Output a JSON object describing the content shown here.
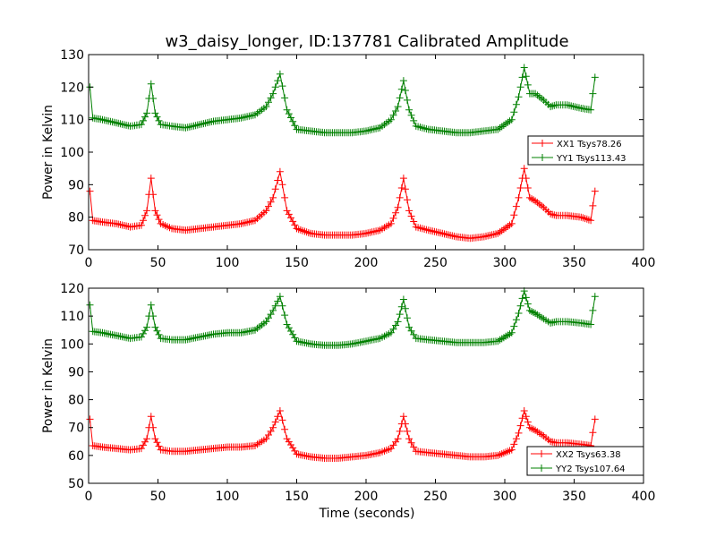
{
  "title": "w3_daisy_longer, ID:137781 Calibrated Amplitude",
  "colors": {
    "xx": "#ff0000",
    "yy": "#008000",
    "axes": "#000000",
    "background": "#ffffff"
  },
  "chart_data": [
    {
      "type": "line",
      "marker": "plus",
      "ylabel": "Power in Kelvin",
      "xlabel": "",
      "xlim": [
        0,
        400
      ],
      "ylim": [
        70,
        130
      ],
      "xticks": [
        "0",
        "50",
        "100",
        "150",
        "200",
        "250",
        "300",
        "350",
        "400"
      ],
      "yticks": [
        "70",
        "80",
        "90",
        "100",
        "110",
        "120",
        "130"
      ],
      "legend_position": "center-right",
      "grid": false,
      "series": [
        {
          "name": "XX1 Tsys78.26",
          "color_key": "xx",
          "x": [
            1,
            3,
            10,
            20,
            30,
            38,
            42,
            45,
            48,
            52,
            60,
            70,
            80,
            90,
            100,
            110,
            120,
            128,
            133,
            138,
            143,
            150,
            160,
            170,
            180,
            190,
            200,
            210,
            218,
            223,
            227,
            231,
            236,
            245,
            255,
            265,
            275,
            285,
            295,
            305,
            310,
            314,
            318,
            322,
            328,
            333,
            337,
            345,
            355,
            362,
            365
          ],
          "y": [
            88,
            79,
            78.5,
            78,
            77,
            77.5,
            82,
            92,
            82,
            78,
            76.5,
            76,
            76.5,
            77,
            77.5,
            78,
            79,
            82,
            86,
            94,
            82,
            76.5,
            75,
            74.5,
            74.5,
            74.5,
            75,
            76,
            78,
            83,
            92,
            82,
            77,
            76,
            75,
            74,
            73.5,
            74,
            75,
            78,
            86,
            95,
            86,
            85,
            83,
            81,
            80.5,
            80.5,
            80,
            79,
            88
          ]
        },
        {
          "name": "YY1 Tsys113.43",
          "color_key": "yy",
          "x": [
            1,
            3,
            10,
            20,
            30,
            38,
            42,
            45,
            48,
            52,
            60,
            70,
            80,
            90,
            100,
            110,
            120,
            128,
            133,
            138,
            143,
            150,
            160,
            170,
            180,
            190,
            200,
            210,
            218,
            223,
            227,
            231,
            236,
            245,
            255,
            265,
            275,
            285,
            295,
            305,
            310,
            314,
            318,
            322,
            328,
            333,
            337,
            345,
            355,
            362,
            365
          ],
          "y": [
            120,
            110.5,
            110,
            109,
            108,
            108.5,
            112,
            121,
            112,
            108.5,
            108,
            107.5,
            108.5,
            109.5,
            110,
            110.5,
            111.5,
            114,
            118,
            124,
            113,
            107,
            106.5,
            106,
            106,
            106,
            106.5,
            107.5,
            110,
            114,
            122,
            113,
            108,
            107,
            106.5,
            106,
            106,
            106.5,
            107,
            110,
            117,
            126,
            118,
            118,
            116,
            114,
            114.5,
            114.5,
            113.5,
            113,
            123
          ]
        }
      ]
    },
    {
      "type": "line",
      "marker": "plus",
      "ylabel": "Power in Kelvin",
      "xlabel": "Time (seconds)",
      "xlim": [
        0,
        400
      ],
      "ylim": [
        50,
        120
      ],
      "xticks": [
        "0",
        "50",
        "100",
        "150",
        "200",
        "250",
        "300",
        "350",
        "400"
      ],
      "yticks": [
        "50",
        "60",
        "70",
        "80",
        "90",
        "100",
        "110",
        "120"
      ],
      "legend_position": "lower-right",
      "grid": false,
      "series": [
        {
          "name": "XX2 Tsys63.38",
          "color_key": "xx",
          "x": [
            1,
            3,
            10,
            20,
            30,
            38,
            42,
            45,
            48,
            52,
            60,
            70,
            80,
            90,
            100,
            110,
            120,
            128,
            133,
            138,
            143,
            150,
            160,
            170,
            180,
            190,
            200,
            210,
            218,
            223,
            227,
            231,
            236,
            245,
            255,
            265,
            275,
            285,
            295,
            305,
            310,
            314,
            318,
            322,
            328,
            333,
            337,
            345,
            355,
            362,
            365
          ],
          "y": [
            73,
            63.5,
            63,
            62.5,
            62,
            62.5,
            66,
            74,
            66,
            62,
            61.5,
            61.5,
            62,
            62.5,
            63,
            63,
            63.5,
            66,
            70,
            76,
            66,
            60.5,
            59.5,
            59,
            59,
            59.5,
            60,
            61,
            62.5,
            66,
            74,
            66,
            61.5,
            61,
            60.5,
            60,
            59.5,
            59.5,
            60,
            62,
            68,
            76,
            70,
            69,
            67,
            65,
            64.5,
            64.5,
            64,
            63.5,
            73
          ]
        },
        {
          "name": "YY2 Tsys107.64",
          "color_key": "yy",
          "x": [
            1,
            3,
            10,
            20,
            30,
            38,
            42,
            45,
            48,
            52,
            60,
            70,
            80,
            90,
            100,
            110,
            120,
            128,
            133,
            138,
            143,
            150,
            160,
            170,
            180,
            190,
            200,
            210,
            218,
            223,
            227,
            231,
            236,
            245,
            255,
            265,
            275,
            285,
            295,
            305,
            310,
            314,
            318,
            322,
            328,
            333,
            337,
            345,
            355,
            362,
            365
          ],
          "y": [
            114,
            104.5,
            104,
            103,
            102,
            102.5,
            106,
            114,
            106,
            102,
            101.5,
            101.5,
            102.5,
            103.5,
            104,
            104,
            105,
            108,
            112,
            117,
            107,
            101,
            100,
            99.5,
            99.5,
            100,
            101,
            102,
            104,
            108,
            116,
            106,
            102,
            101.5,
            101,
            100.5,
            100.5,
            100.5,
            101,
            104,
            111,
            119,
            112,
            111,
            109,
            107.5,
            108,
            108,
            107.5,
            107,
            117
          ]
        }
      ]
    }
  ]
}
